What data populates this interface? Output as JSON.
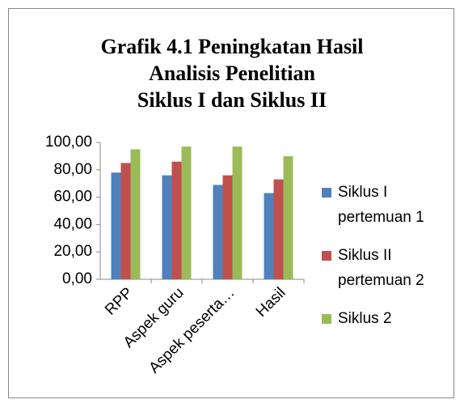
{
  "chart_data": {
    "type": "bar",
    "title": [
      "Grafik 4.1 Peningkatan Hasil",
      "Analisis Penelitian",
      "Siklus I dan Siklus II"
    ],
    "categories": [
      "RPP",
      "Aspek guru",
      "Aspek peserta…",
      "Hasil"
    ],
    "series": [
      {
        "name": "Siklus I pertemuan 1",
        "color": "#4f81bd",
        "values": [
          78,
          76,
          69,
          63
        ]
      },
      {
        "name": "Siklus II pertemuan 2",
        "color": "#c0504d",
        "values": [
          85,
          86,
          76,
          73
        ]
      },
      {
        "name": "Siklus 2",
        "color": "#9bbb59",
        "values": [
          95,
          97,
          97,
          90
        ]
      }
    ],
    "ylim": [
      0,
      100
    ],
    "yticks": [
      {
        "value": 0,
        "label": "0,00"
      },
      {
        "value": 20,
        "label": "20,00"
      },
      {
        "value": 40,
        "label": "40,00"
      },
      {
        "value": 60,
        "label": "60,00"
      },
      {
        "value": 80,
        "label": "80,00"
      },
      {
        "value": 100,
        "label": "100,00"
      }
    ],
    "grid": false,
    "legend": "right"
  }
}
